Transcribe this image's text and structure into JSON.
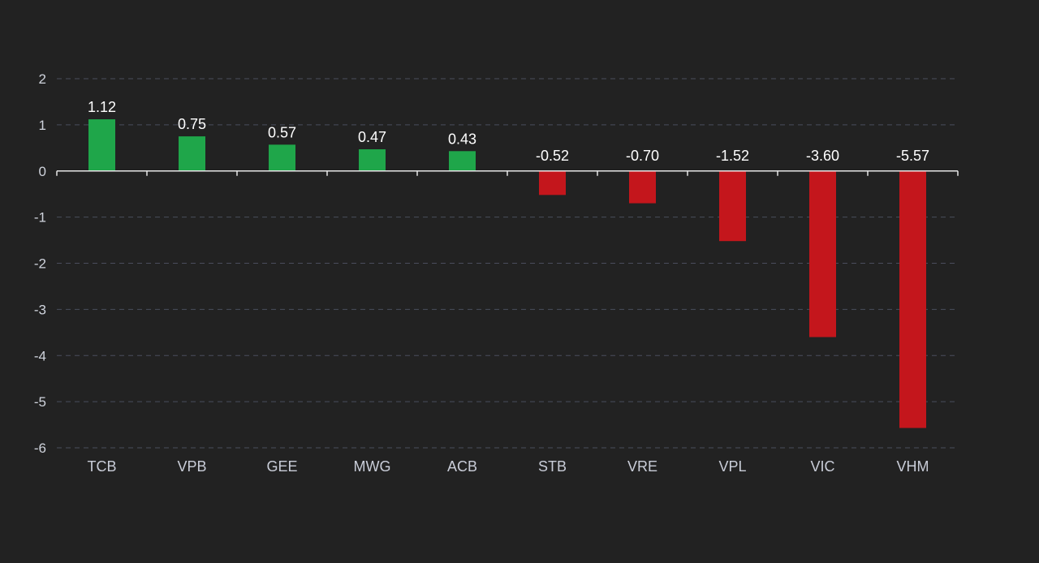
{
  "chart_data": {
    "type": "bar",
    "categories": [
      "TCB",
      "VPB",
      "GEE",
      "MWG",
      "ACB",
      "STB",
      "VRE",
      "VPL",
      "VIC",
      "VHM"
    ],
    "values": [
      1.12,
      0.75,
      0.57,
      0.47,
      0.43,
      -0.52,
      -0.7,
      -1.52,
      -3.6,
      -5.57
    ],
    "data_labels": [
      "1.12",
      "0.75",
      "0.57",
      "0.47",
      "0.43",
      "-0.52",
      "-0.70",
      "-1.52",
      "-3.60",
      "-5.57"
    ],
    "ylim": [
      -6,
      2
    ],
    "yticks": [
      2,
      1,
      0,
      -1,
      -2,
      -3,
      -4,
      -5,
      -6
    ],
    "ytick_labels": [
      "2",
      "1",
      "0",
      "-1",
      "-2",
      "-3",
      "-4",
      "-5",
      "-6"
    ],
    "grid": true,
    "legend": "none",
    "colors": {
      "positive": "#1fa64a",
      "negative": "#c4161c",
      "background": "#222222"
    }
  }
}
